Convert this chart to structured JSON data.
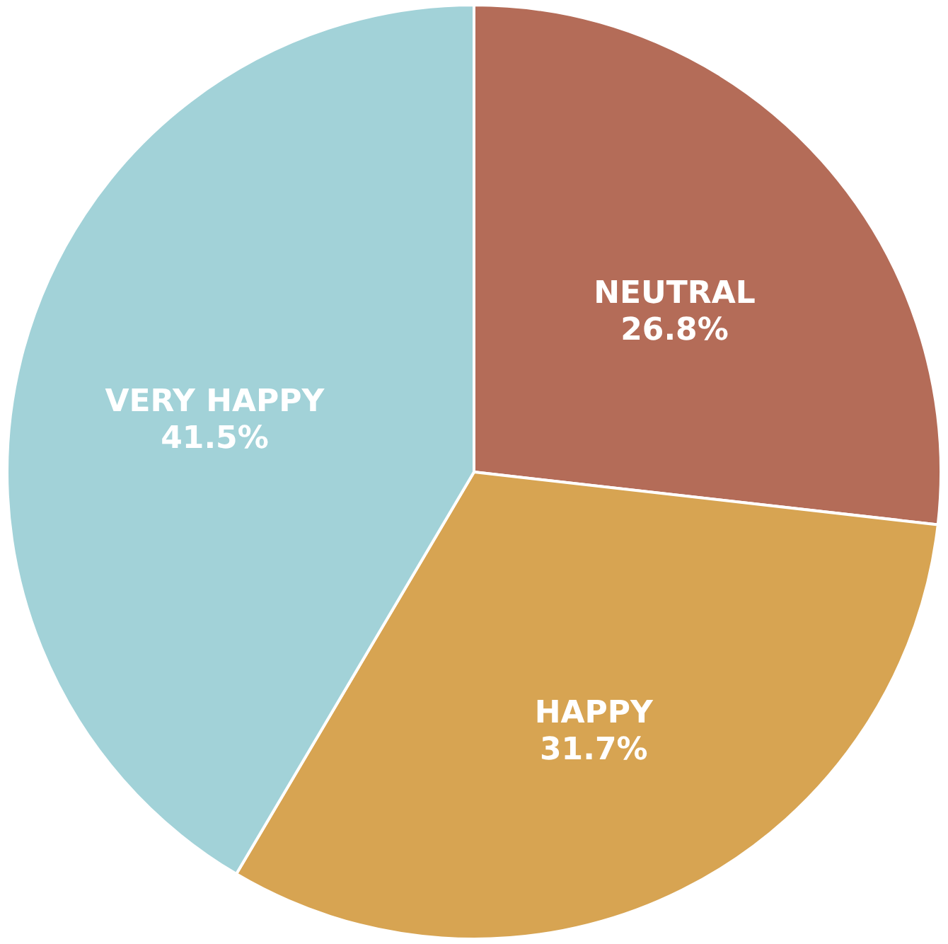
{
  "chart_data": {
    "type": "pie",
    "categories": [
      "NEUTRAL",
      "HAPPY",
      "VERY HAPPY"
    ],
    "values": [
      26.8,
      31.7,
      41.5
    ],
    "value_labels": [
      "26.8%",
      "31.7%",
      "41.5%"
    ],
    "colors": [
      "#b46c58",
      "#d7a452",
      "#a2d2d8"
    ]
  }
}
